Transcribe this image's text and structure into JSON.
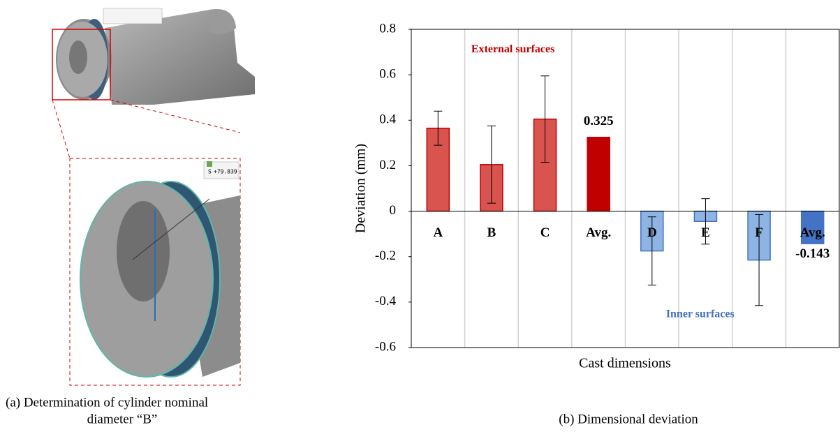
{
  "chart_data": {
    "type": "bar",
    "y_label": "Deviation (mm)",
    "x_label": "Cast dimensions",
    "caption": "(b)  Dimensional deviation",
    "categories": [
      "A",
      "B",
      "C",
      "Avg.",
      "D",
      "E",
      "F",
      "Avg."
    ],
    "values": [
      0.365,
      0.205,
      0.405,
      0.325,
      -0.175,
      -0.045,
      -0.215,
      -0.143
    ],
    "errors": [
      0.075,
      0.17,
      0.19,
      null,
      0.15,
      0.1,
      0.2,
      null
    ],
    "colors": [
      "#d9534f",
      "#d9534f",
      "#d9534f",
      "#c00000",
      "#8eb4e3",
      "#8eb4e3",
      "#8eb4e3",
      "#4472c4"
    ],
    "edge_colors": [
      "#c00000",
      "#c00000",
      "#c00000",
      "#c00000",
      "#4472c4",
      "#4472c4",
      "#4472c4",
      "#4472c4"
    ],
    "labeled_bars": [
      3,
      7
    ],
    "ylim": [
      -0.6,
      0.8
    ],
    "yticks": [
      -0.6,
      -0.4,
      -0.2,
      0,
      0.2,
      0.4,
      0.6,
      0.8
    ],
    "grid": "x",
    "annotations": [
      {
        "text": "External surfaces",
        "color": "#c00000",
        "value": 0.71,
        "index": 1.9
      },
      {
        "text": "Inner  surfaces",
        "color": "#4472c4",
        "value": -0.455,
        "index": 5.4
      }
    ]
  },
  "panel_a": {
    "caption_line1": "(a)  Determination of cylinder nominal",
    "caption_line2": "diameter “B”",
    "tag_letter": "S",
    "tag_value": "+79.839"
  }
}
